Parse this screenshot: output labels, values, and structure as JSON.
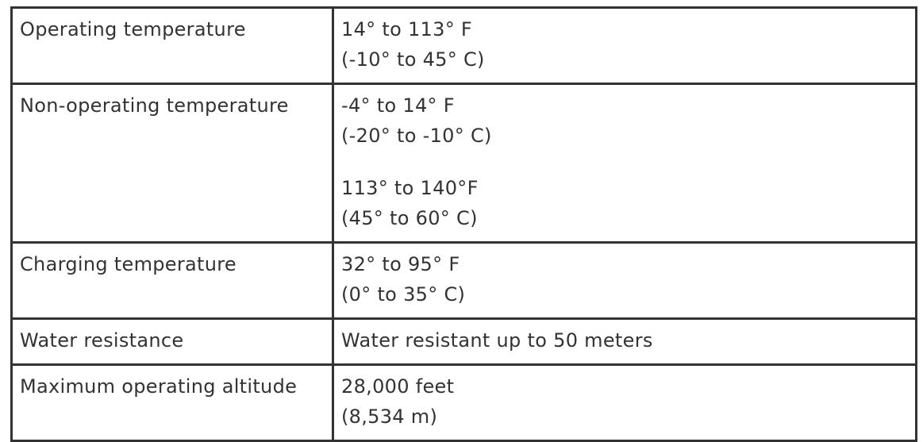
{
  "table": {
    "rows": [
      [
        "Operating temperature",
        [
          [
            "14° to 113° F",
            "(-10° to 45° C)"
          ]
        ]
      ],
      [
        "Non-operating temperature",
        [
          [
            "-4° to 14° F",
            "(-20° to -10° C)"
          ],
          [
            "113° to 140°F",
            "(45° to 60° C)"
          ]
        ]
      ],
      [
        "Charging temperature",
        [
          [
            "32° to 95° F",
            "(0° to 35° C)"
          ]
        ]
      ],
      [
        "Water resistance",
        [
          [
            "Water resistant up to 50 meters"
          ]
        ]
      ],
      [
        "Maximum operating altitude",
        [
          [
            "28,000 feet",
            "(8,534 m)"
          ]
        ]
      ]
    ]
  }
}
